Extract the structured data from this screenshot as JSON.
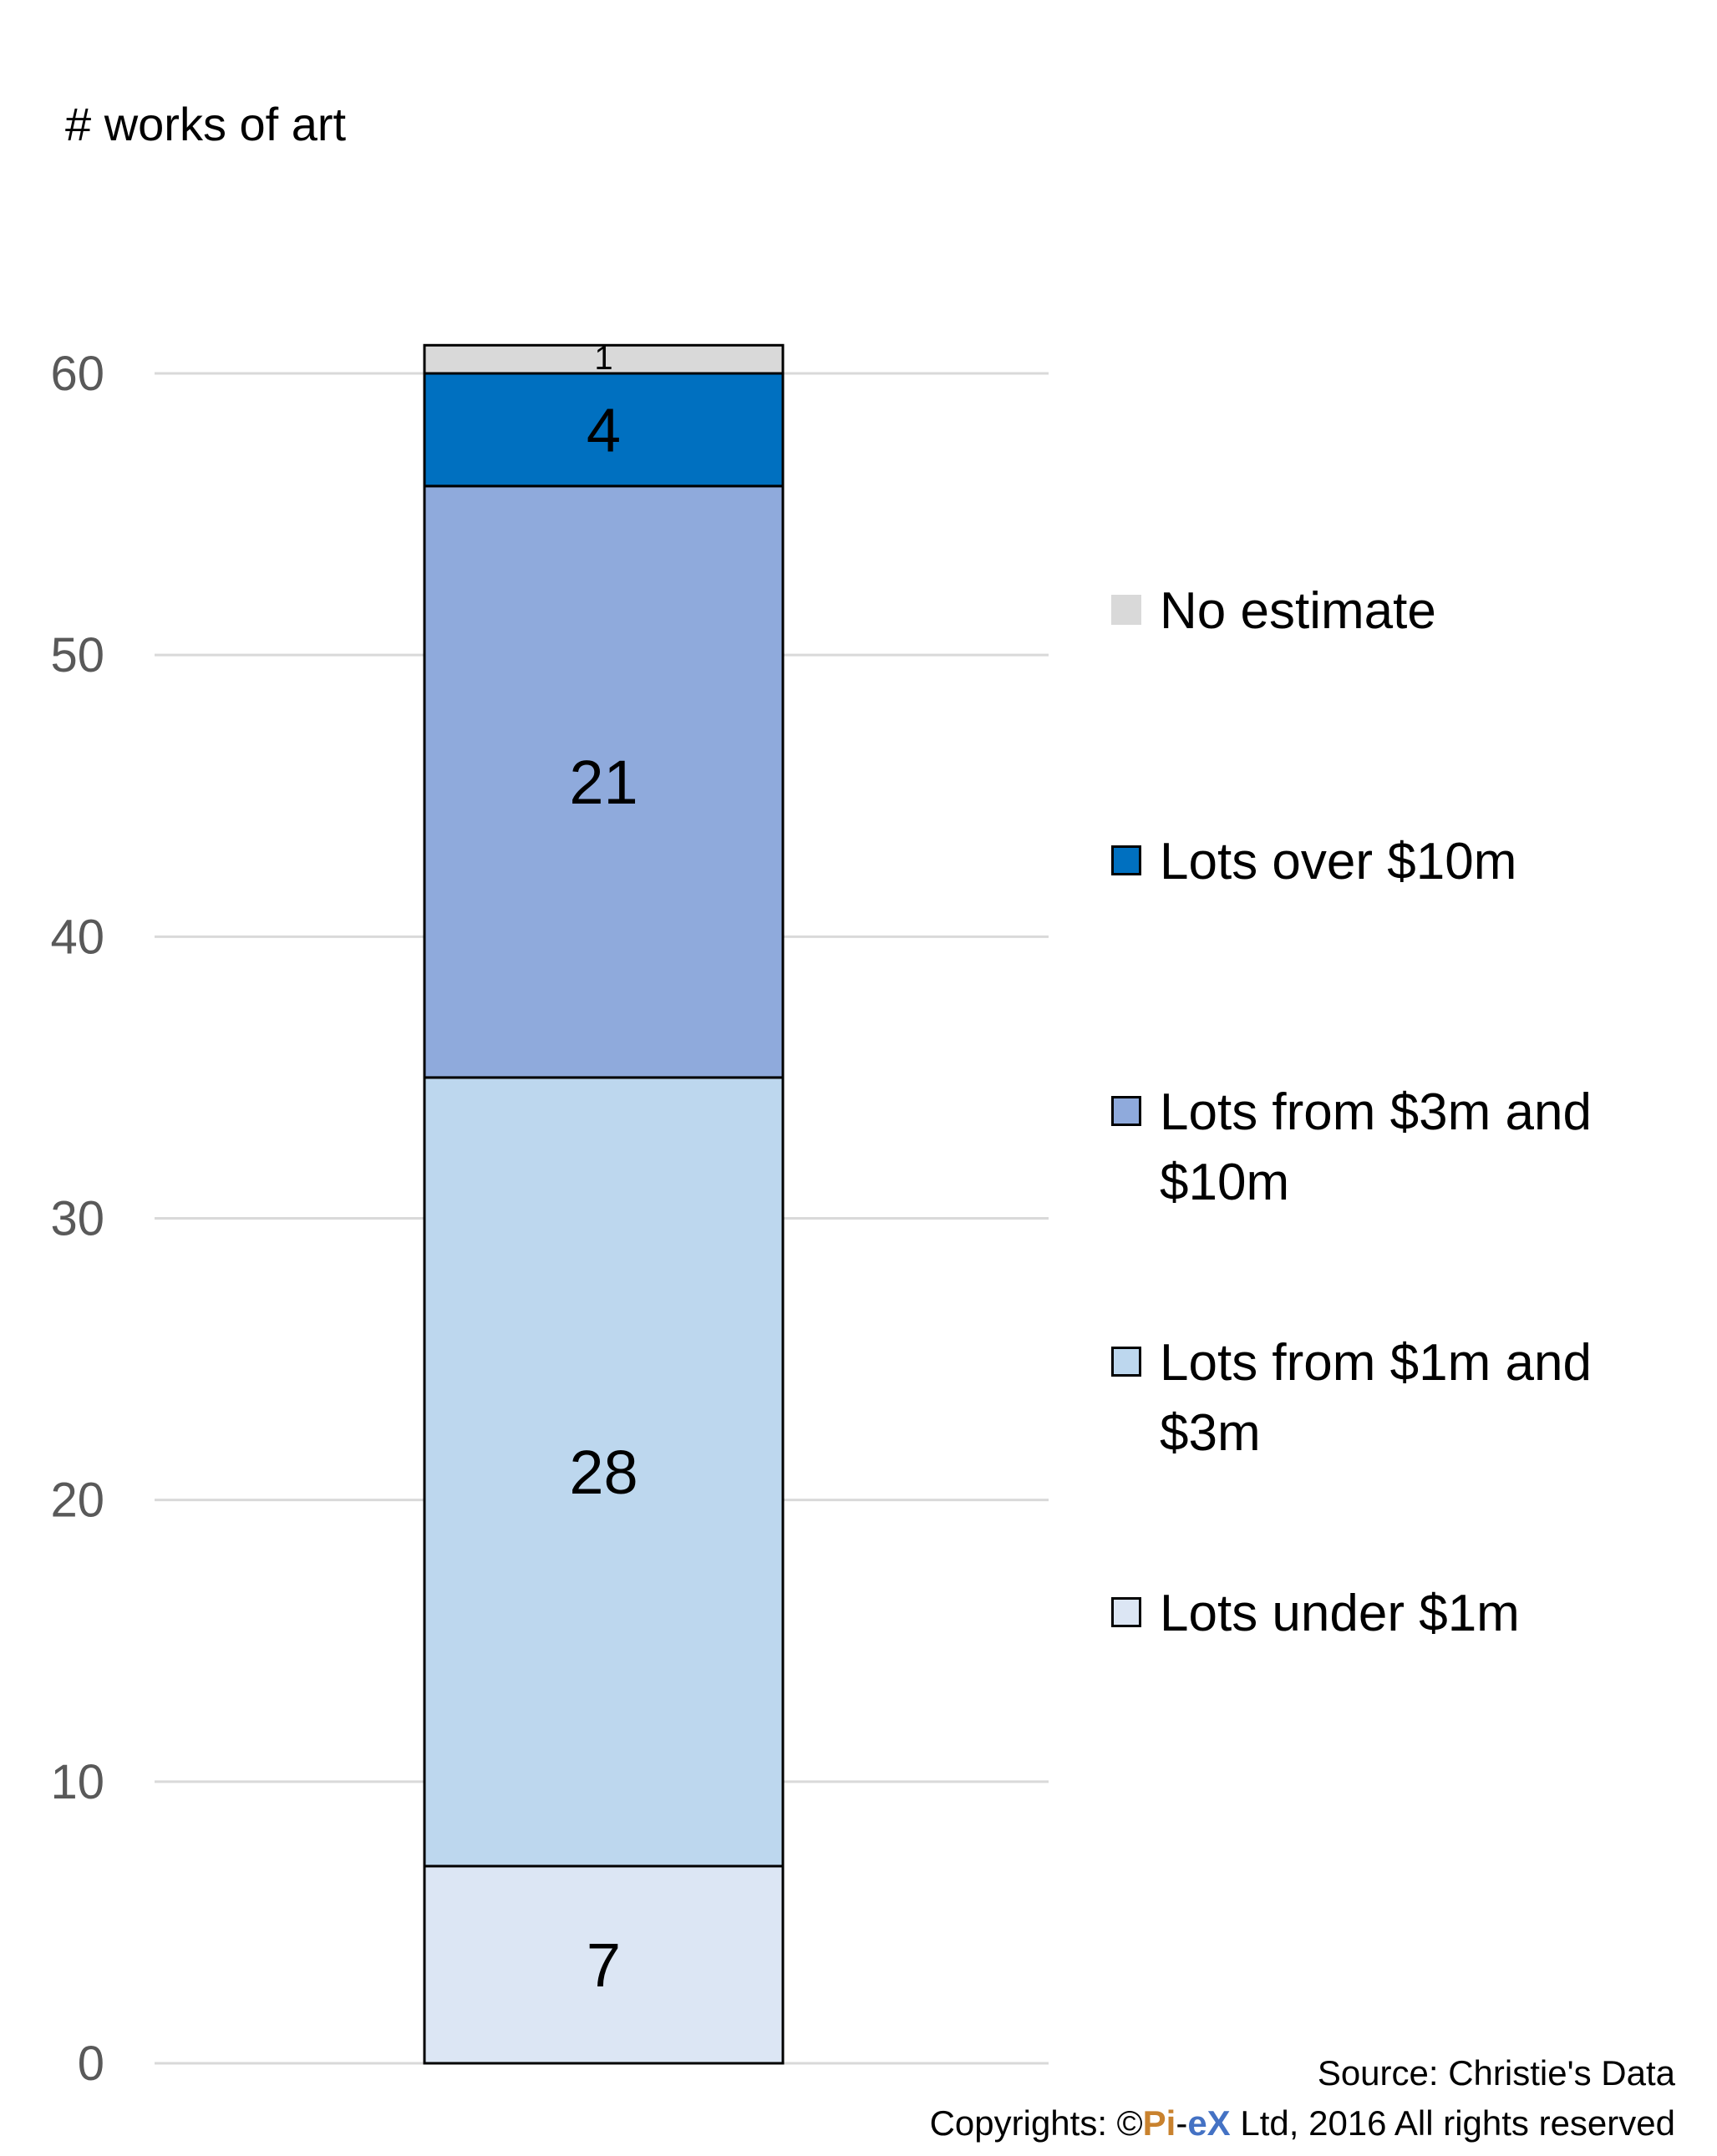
{
  "chart_data": {
    "type": "bar",
    "stacked": true,
    "categories": [
      ""
    ],
    "ylabel": "# works of art",
    "ylim": [
      0,
      60
    ],
    "yticks": [
      0,
      10,
      20,
      30,
      40,
      50,
      60
    ],
    "grid": true,
    "legend_position": "right",
    "series": [
      {
        "name": "Lots under $1m",
        "values": [
          7
        ],
        "color": "#dce6f4"
      },
      {
        "name": "Lots from $1m and $3m",
        "values": [
          28
        ],
        "color": "#bdd7ee"
      },
      {
        "name": "Lots from $3m and $10m",
        "values": [
          21
        ],
        "color": "#8faadc"
      },
      {
        "name": "Lots over $10m",
        "values": [
          4
        ],
        "color": "#0070c0"
      },
      {
        "name": "No estimate",
        "values": [
          1
        ],
        "color": "#d9d9d9"
      }
    ]
  },
  "legend": {
    "items": [
      {
        "label": "No estimate",
        "color": "#d9d9d9",
        "border": false
      },
      {
        "label": "Lots over $10m",
        "color": "#0070c0",
        "border": true
      },
      {
        "label": "Lots from $3m and $10m",
        "color": "#8faadc",
        "border": true
      },
      {
        "label": "Lots from $1m and $3m",
        "color": "#bdd7ee",
        "border": true
      },
      {
        "label": "Lots under $1m",
        "color": "#dce6f4",
        "border": true
      }
    ]
  },
  "footer": {
    "source": "Source: Christie's Data",
    "copyright_prefix": "Copyrights: ©",
    "brand_pi": "Pi",
    "brand_dash": "-",
    "brand_ex": "eX",
    "copyright_suffix": " Ltd, 2016 All rights reserved"
  }
}
